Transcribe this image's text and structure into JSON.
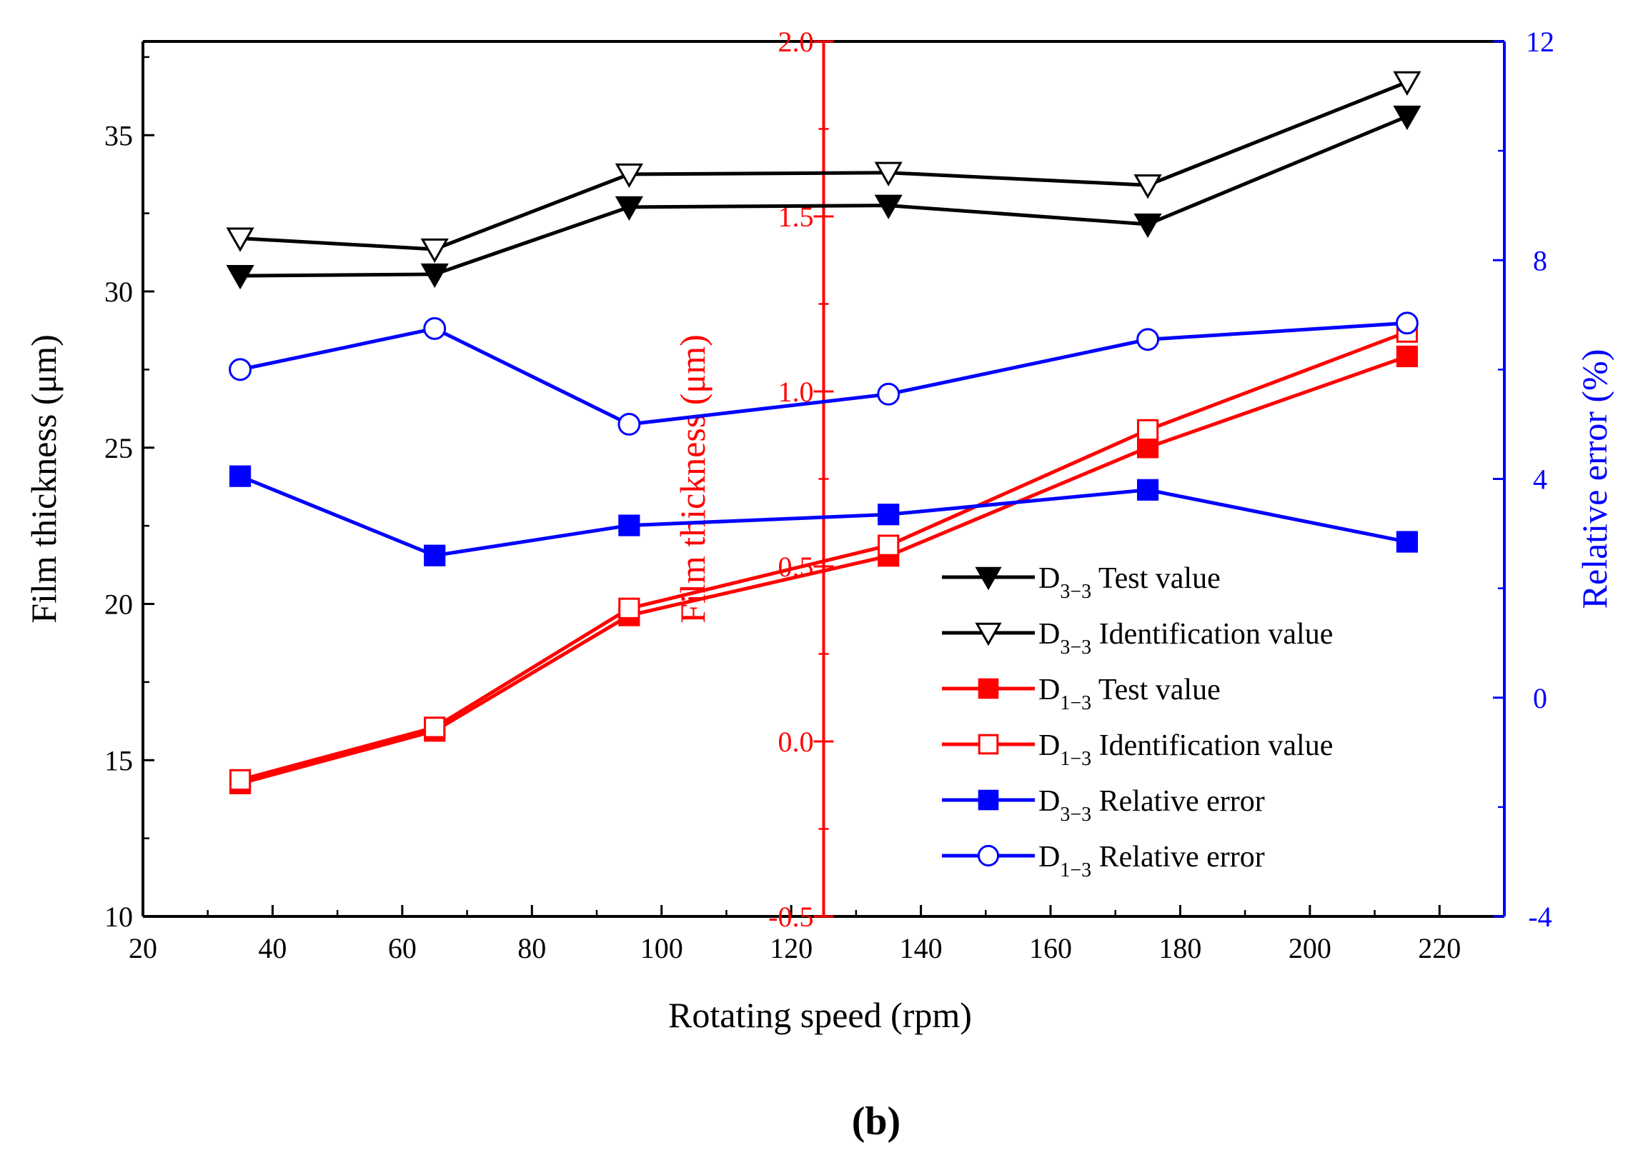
{
  "panel_label": "(b)",
  "colors": {
    "black": "#000000",
    "red": "#ff0000",
    "blue": "#0000ff"
  },
  "chart_data": {
    "type": "line",
    "title": "",
    "xlabel": "Rotating speed (rpm)",
    "xlim": [
      20,
      230
    ],
    "xticks": [
      20,
      40,
      60,
      80,
      100,
      120,
      140,
      160,
      180,
      200,
      220
    ],
    "axes": {
      "left": {
        "label": "Film thickness (μm)",
        "lim": [
          10,
          38
        ],
        "ticks": [
          10,
          15,
          20,
          25,
          30,
          35
        ],
        "color": "#000000"
      },
      "middle": {
        "label": "Film thickness (μm)",
        "lim": [
          -0.5,
          2.0
        ],
        "ticks": [
          -0.5,
          0.0,
          0.5,
          1.0,
          1.5,
          2.0
        ],
        "tick_labels": [
          "-0.5",
          "0.0",
          "0.5",
          "1.0",
          "1.5",
          "2.0"
        ],
        "color": "#ff0000",
        "position_x": 125
      },
      "right": {
        "label": "Relative error (%)",
        "lim": [
          -4,
          12
        ],
        "ticks": [
          -4,
          0,
          4,
          8,
          12
        ],
        "color": "#0000ff"
      }
    },
    "x": [
      35,
      65,
      95,
      135,
      175,
      215
    ],
    "series": [
      {
        "name": "D",
        "sub": "3−3",
        "suffix": " Test value",
        "axis": "left",
        "color": "#000000",
        "marker": "triangle-down-filled",
        "values": [
          30.5,
          30.55,
          32.7,
          32.75,
          32.15,
          35.6
        ]
      },
      {
        "name": "D",
        "sub": "3−3",
        "suffix": " Identification value",
        "axis": "left",
        "color": "#000000",
        "marker": "triangle-down-open",
        "values": [
          31.7,
          31.35,
          33.75,
          33.8,
          33.4,
          36.7
        ]
      },
      {
        "name": "D",
        "sub": "1−3",
        "suffix": " Test value",
        "axis": "middle",
        "color": "#ff0000",
        "marker": "square-filled",
        "values": [
          -0.12,
          0.03,
          0.36,
          0.53,
          0.84,
          1.1
        ]
      },
      {
        "name": "D",
        "sub": "1−3",
        "suffix": " Identification value",
        "axis": "middle",
        "color": "#ff0000",
        "marker": "square-open",
        "values": [
          -0.11,
          0.04,
          0.38,
          0.56,
          0.89,
          1.17
        ]
      },
      {
        "name": "D",
        "sub": "3−3",
        "suffix": " Relative error",
        "axis": "right",
        "color": "#0000ff",
        "marker": "square-filled",
        "values": [
          4.05,
          2.6,
          3.15,
          3.35,
          3.8,
          2.85
        ]
      },
      {
        "name": "D",
        "sub": "1−3",
        "suffix": " Relative error",
        "axis": "right",
        "color": "#0000ff",
        "marker": "circle-open",
        "values": [
          6.0,
          6.75,
          5.0,
          5.55,
          6.55,
          6.85
        ]
      }
    ],
    "legend_position": "lower-right",
    "grid": false
  }
}
